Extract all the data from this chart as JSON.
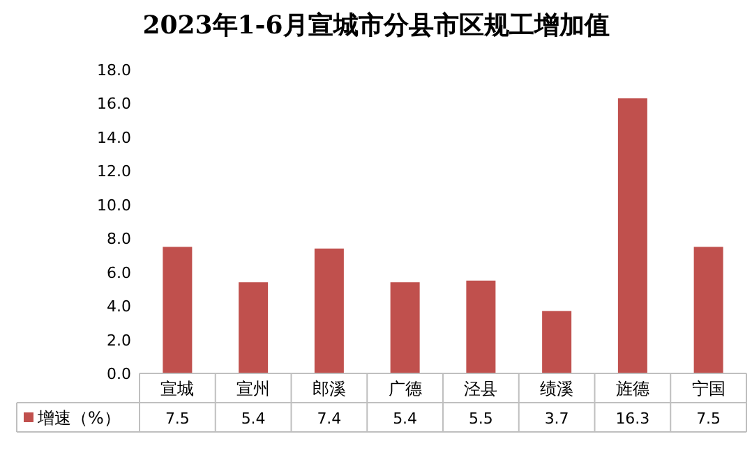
{
  "chart_data": {
    "type": "bar",
    "title": "2023年1-6月宣城市分县市区规工增加值",
    "categories": [
      "宣城",
      "宣州",
      "郎溪",
      "广德",
      "泾县",
      "绩溪",
      "旌德",
      "宁国"
    ],
    "series": [
      {
        "name": "增速（%）",
        "color": "#c0504d",
        "values": [
          7.5,
          5.4,
          7.4,
          5.4,
          5.5,
          3.7,
          16.3,
          7.5
        ]
      }
    ],
    "ylim": [
      0,
      18
    ],
    "yticks": [
      {
        "value": 0,
        "label": "0.0"
      },
      {
        "value": 2,
        "label": "2.0"
      },
      {
        "value": 4,
        "label": "4.0"
      },
      {
        "value": 6,
        "label": "6.0"
      },
      {
        "value": 8,
        "label": "8.0"
      },
      {
        "value": 10,
        "label": "10.0"
      },
      {
        "value": 12,
        "label": "12.0"
      },
      {
        "value": 14,
        "label": "14.0"
      },
      {
        "value": 16,
        "label": "16.0"
      },
      {
        "value": 18,
        "label": "18.0"
      }
    ],
    "grid": false,
    "legend": "bottom",
    "data_labels": true
  }
}
